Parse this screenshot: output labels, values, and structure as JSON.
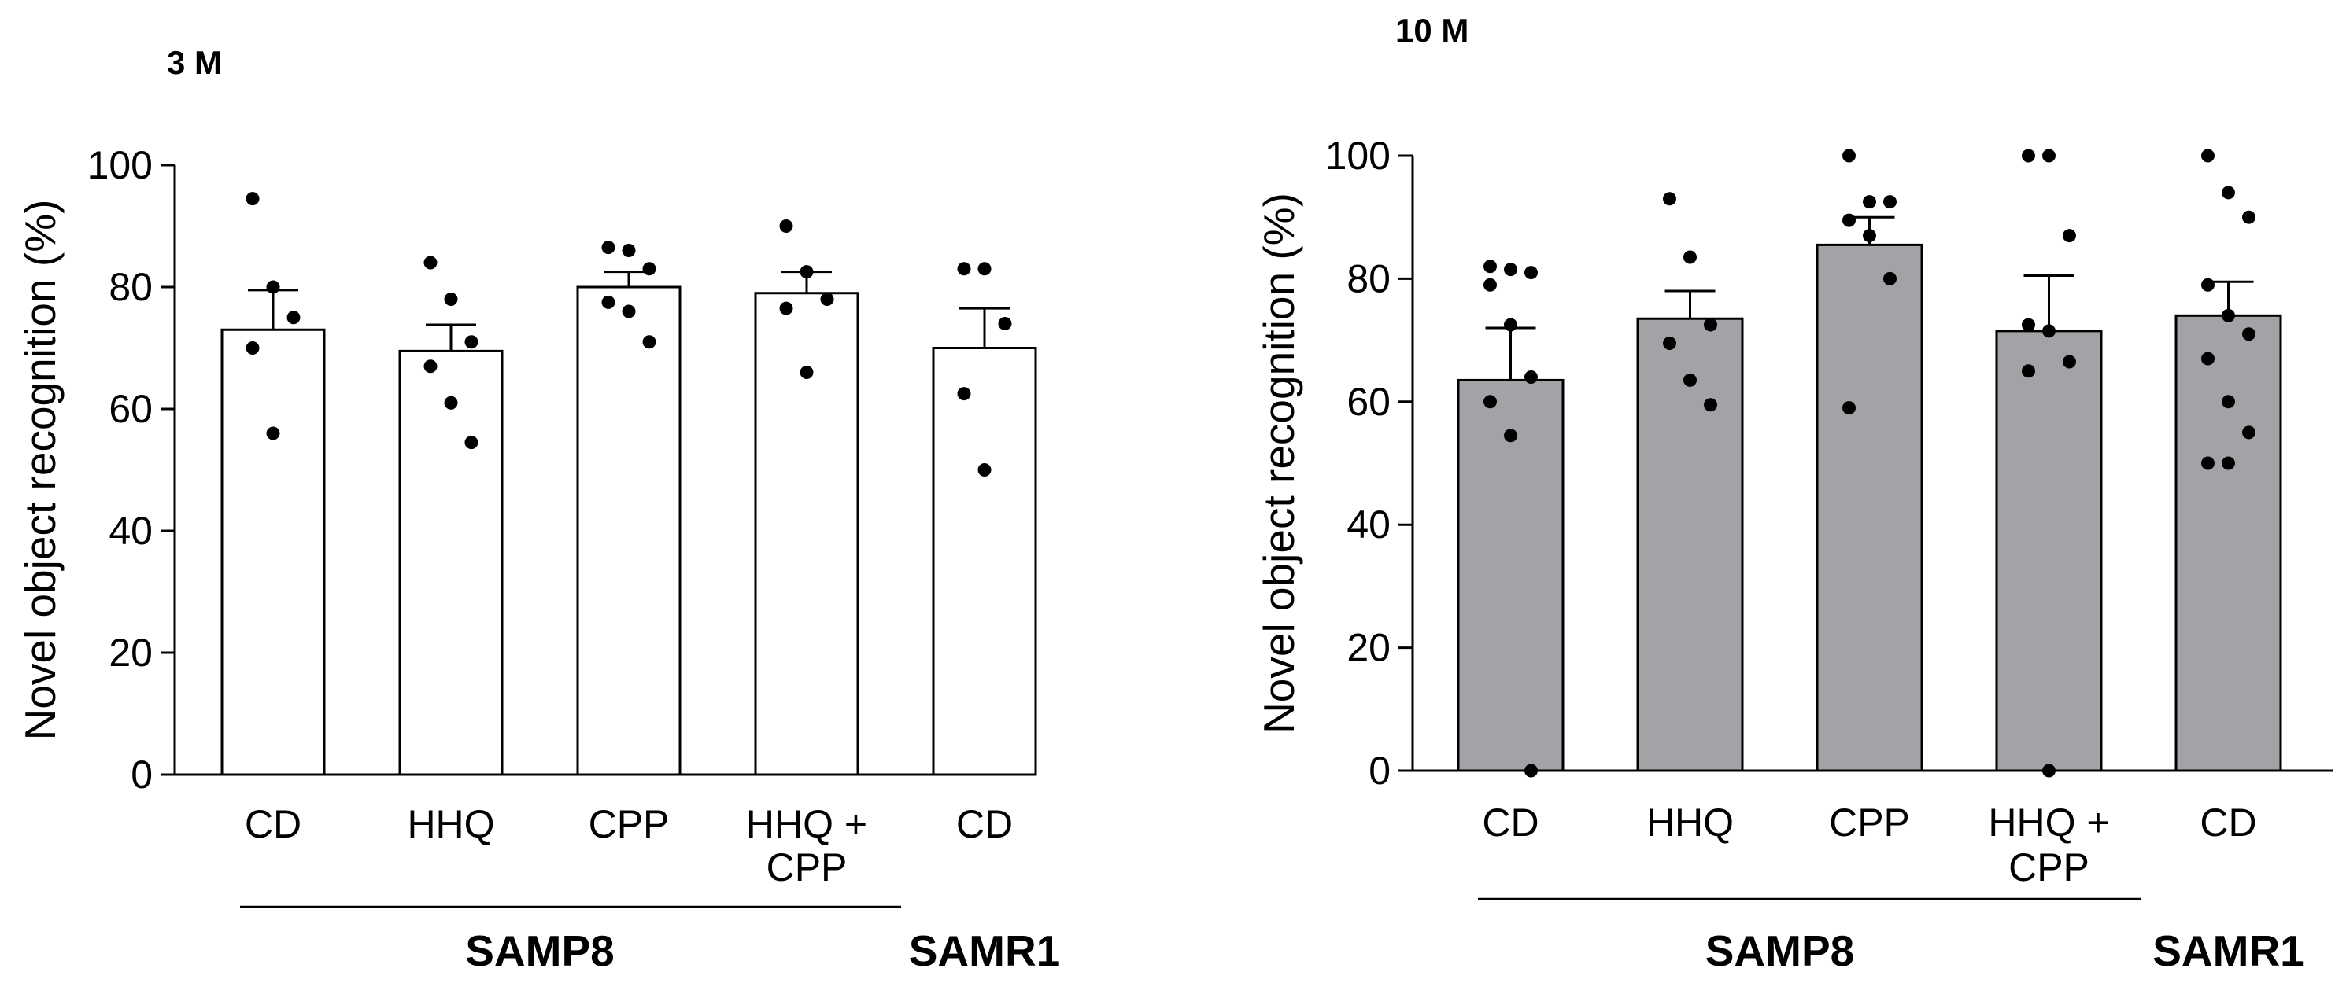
{
  "chart_data": [
    {
      "type": "bar",
      "title": "3 M",
      "ylabel": "Novel object recognition (%)",
      "xlabel": "",
      "ylim": [
        0,
        100
      ],
      "yticks": [
        0,
        20,
        40,
        60,
        80,
        100
      ],
      "bar_color": "#ffffff",
      "categories": [
        {
          "label": "CD",
          "value": 73,
          "sem": 6.5,
          "points": [
            94.5,
            80,
            75,
            70,
            56
          ]
        },
        {
          "label": "HHQ",
          "value": 69.5,
          "sem": 4.3,
          "points": [
            84,
            78,
            71,
            67,
            61,
            54.5
          ]
        },
        {
          "label": "CPP",
          "value": 80,
          "sem": 2.5,
          "points": [
            86.5,
            86,
            83,
            77.5,
            76,
            71
          ]
        },
        {
          "label": "HHQ +\nCPP",
          "value": 79,
          "sem": 3.5,
          "points": [
            90,
            82.5,
            78,
            76.5,
            66
          ]
        },
        {
          "label": "CD",
          "value": 70,
          "sem": 6.5,
          "points": [
            83,
            83,
            74,
            62.5,
            50
          ]
        }
      ],
      "groups": [
        {
          "label": "SAMP8",
          "span": [
            0,
            3
          ]
        },
        {
          "label": "SAMR1",
          "span": [
            4,
            4
          ]
        }
      ]
    },
    {
      "type": "bar",
      "title": "10 M",
      "ylabel": "Novel object recognition (%)",
      "xlabel": "",
      "ylim": [
        0,
        100
      ],
      "yticks": [
        0,
        20,
        40,
        60,
        80,
        100
      ],
      "bar_color": "#a3a3a7",
      "categories": [
        {
          "label": "CD",
          "value": 63.5,
          "sem": 8.5,
          "points": [
            82,
            81.5,
            81,
            79,
            72.5,
            64,
            60,
            54.5,
            0
          ]
        },
        {
          "label": "HHQ",
          "value": 73.5,
          "sem": 4.5,
          "points": [
            93,
            83.5,
            72.5,
            69.5,
            63.5,
            59.5
          ]
        },
        {
          "label": "CPP",
          "value": 85.5,
          "sem": 4.5,
          "points": [
            100,
            92.5,
            92.5,
            89.5,
            87,
            80,
            59
          ]
        },
        {
          "label": "HHQ +\nCPP",
          "value": 71.5,
          "sem": 9,
          "points": [
            100,
            100,
            87,
            72.5,
            71.5,
            66.5,
            65,
            0
          ]
        },
        {
          "label": "CD",
          "value": 74,
          "sem": 5.5,
          "points": [
            100,
            94,
            90,
            79,
            74,
            71,
            67,
            60,
            55,
            50,
            50
          ]
        }
      ],
      "groups": [
        {
          "label": "SAMP8",
          "span": [
            0,
            3
          ]
        },
        {
          "label": "SAMR1",
          "span": [
            4,
            4
          ]
        }
      ]
    }
  ]
}
